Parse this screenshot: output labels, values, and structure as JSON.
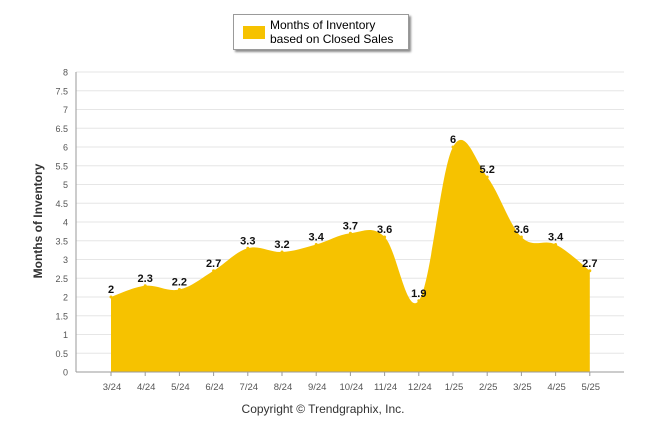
{
  "legend": {
    "label": "Months of Inventory based on Closed Sales",
    "color": "#f6c200"
  },
  "copyright": "Copyright © Trendgraphix, Inc.",
  "chart_data": {
    "type": "area",
    "title": "",
    "xlabel": "",
    "ylabel": "Months of Inventory",
    "ylim": [
      0,
      8
    ],
    "yticks": [
      "0",
      "0.5",
      "1",
      "1.5",
      "2",
      "2.5",
      "3",
      "3.5",
      "4",
      "4.5",
      "5",
      "5.5",
      "6",
      "6.5",
      "7",
      "7.5",
      "8"
    ],
    "grid": true,
    "legend_position": "top-center",
    "categories": [
      "3/24",
      "4/24",
      "5/24",
      "6/24",
      "7/24",
      "8/24",
      "9/24",
      "10/24",
      "11/24",
      "12/24",
      "1/25",
      "2/25",
      "3/25",
      "4/25",
      "5/25"
    ],
    "series": [
      {
        "name": "Months of Inventory based on Closed Sales",
        "color": "#f6c200",
        "values": [
          2,
          2.3,
          2.2,
          2.7,
          3.3,
          3.2,
          3.4,
          3.7,
          3.6,
          1.9,
          6,
          5.2,
          3.6,
          3.4,
          2.7
        ],
        "labels": [
          "2",
          "2.3",
          "2.2",
          "2.7",
          "3.3",
          "3.2",
          "3.4",
          "3.7",
          "3.6",
          "1.9",
          "6",
          "5.2",
          "3.6",
          "3.4",
          "2.7"
        ]
      }
    ]
  }
}
